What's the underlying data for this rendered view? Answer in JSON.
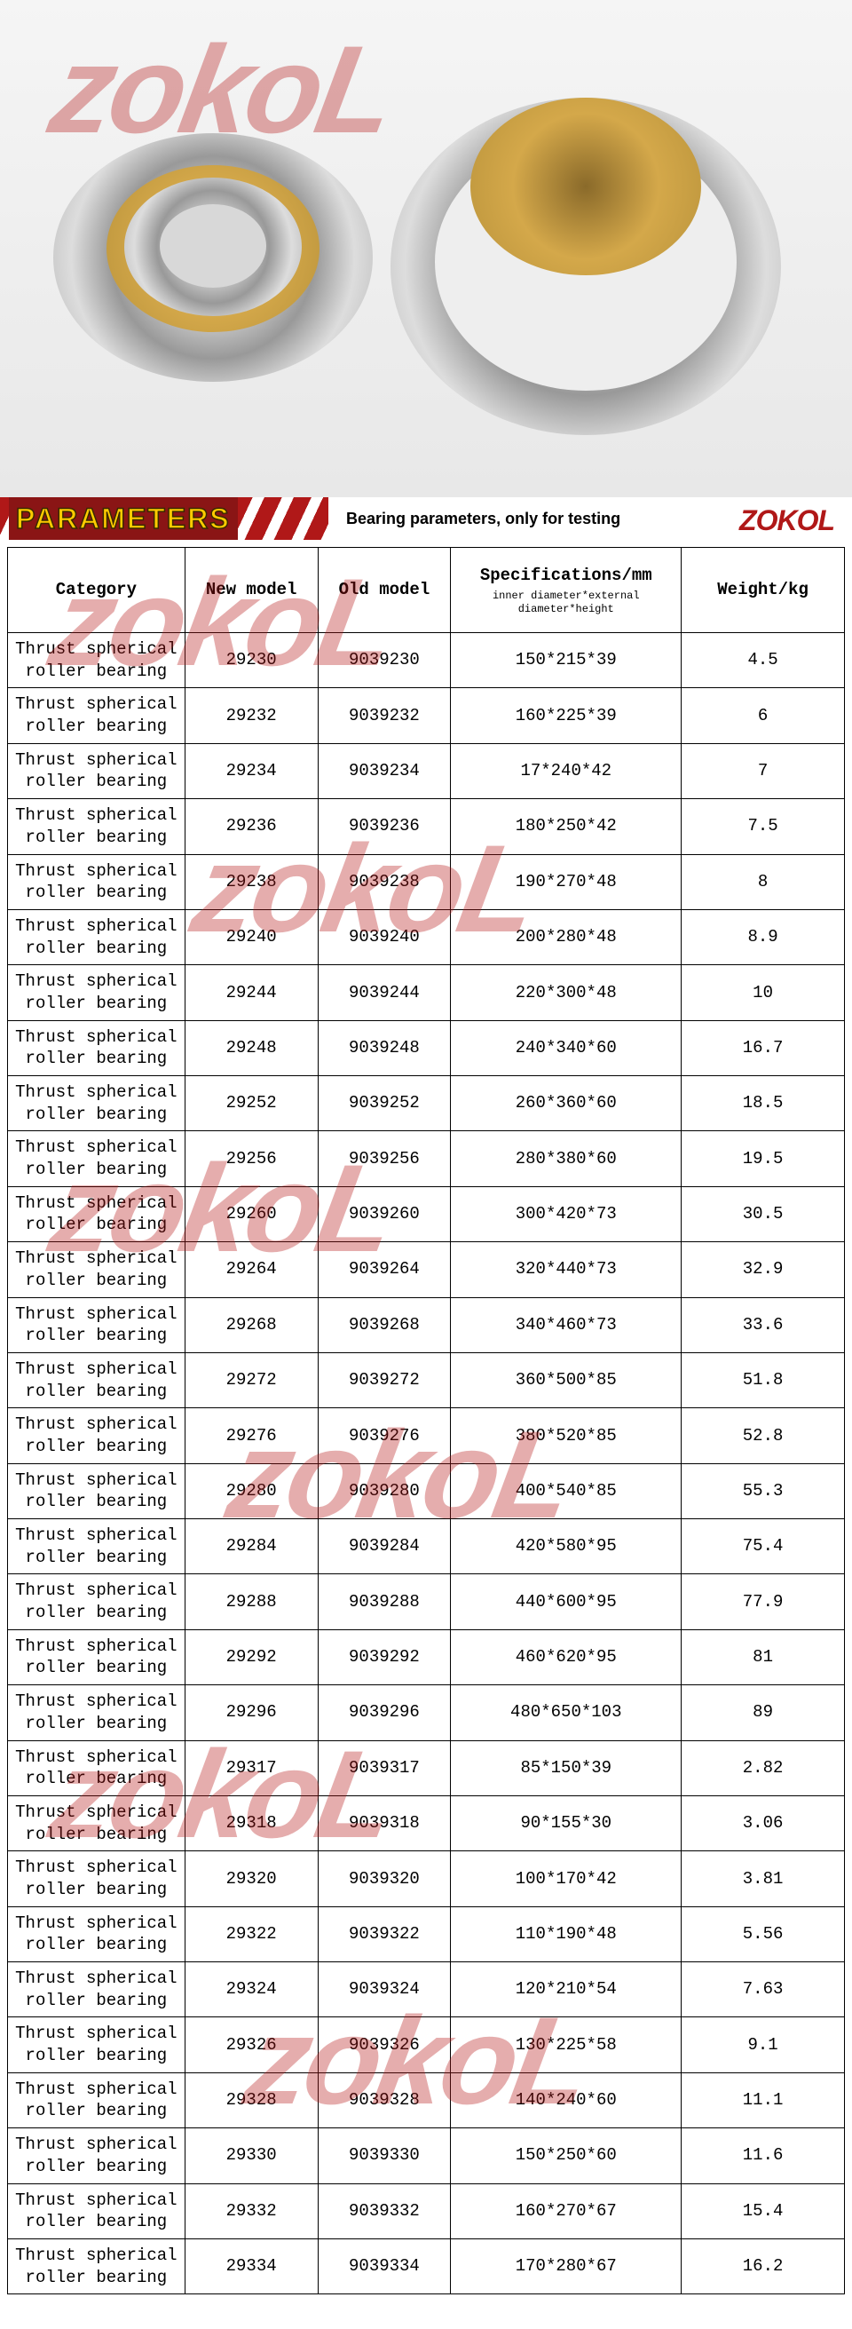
{
  "watermark_text": "zokoL",
  "product_image_alt": "Thrust spherical roller bearings",
  "parameters_header": {
    "label": "PARAMETERS",
    "subtitle": "Bearing parameters, only for testing",
    "brand": "ZOKOL"
  },
  "table": {
    "columns": [
      {
        "label": "Category",
        "sub": ""
      },
      {
        "label": "New model",
        "sub": ""
      },
      {
        "label": "Old model",
        "sub": ""
      },
      {
        "label": "Specifications/mm",
        "sub": "inner diameter*external diameter*height"
      },
      {
        "label": "Weight/kg",
        "sub": ""
      }
    ],
    "rows": [
      {
        "category": "Thrust spherical roller bearing",
        "new_model": "29230",
        "old_model": "9039230",
        "spec": "150*215*39",
        "weight": "4.5"
      },
      {
        "category": "Thrust spherical roller bearing",
        "new_model": "29232",
        "old_model": "9039232",
        "spec": "160*225*39",
        "weight": "6"
      },
      {
        "category": "Thrust spherical roller bearing",
        "new_model": "29234",
        "old_model": "9039234",
        "spec": "17*240*42",
        "weight": "7"
      },
      {
        "category": "Thrust spherical roller bearing",
        "new_model": "29236",
        "old_model": "9039236",
        "spec": "180*250*42",
        "weight": "7.5"
      },
      {
        "category": "Thrust spherical roller bearing",
        "new_model": "29238",
        "old_model": "9039238",
        "spec": "190*270*48",
        "weight": "8"
      },
      {
        "category": "Thrust spherical roller bearing",
        "new_model": "29240",
        "old_model": "9039240",
        "spec": "200*280*48",
        "weight": "8.9"
      },
      {
        "category": "Thrust spherical roller bearing",
        "new_model": "29244",
        "old_model": "9039244",
        "spec": "220*300*48",
        "weight": "10"
      },
      {
        "category": "Thrust spherical roller bearing",
        "new_model": "29248",
        "old_model": "9039248",
        "spec": "240*340*60",
        "weight": "16.7"
      },
      {
        "category": "Thrust spherical roller bearing",
        "new_model": "29252",
        "old_model": "9039252",
        "spec": "260*360*60",
        "weight": "18.5"
      },
      {
        "category": "Thrust spherical roller bearing",
        "new_model": "29256",
        "old_model": "9039256",
        "spec": "280*380*60",
        "weight": "19.5"
      },
      {
        "category": "Thrust spherical roller bearing",
        "new_model": "29260",
        "old_model": "9039260",
        "spec": "300*420*73",
        "weight": "30.5"
      },
      {
        "category": "Thrust spherical roller bearing",
        "new_model": "29264",
        "old_model": "9039264",
        "spec": "320*440*73",
        "weight": "32.9"
      },
      {
        "category": "Thrust spherical roller bearing",
        "new_model": "29268",
        "old_model": "9039268",
        "spec": "340*460*73",
        "weight": "33.6"
      },
      {
        "category": "Thrust spherical roller bearing",
        "new_model": "29272",
        "old_model": "9039272",
        "spec": "360*500*85",
        "weight": "51.8"
      },
      {
        "category": "Thrust spherical roller bearing",
        "new_model": "29276",
        "old_model": "9039276",
        "spec": "380*520*85",
        "weight": "52.8"
      },
      {
        "category": "Thrust spherical roller bearing",
        "new_model": "29280",
        "old_model": "9039280",
        "spec": "400*540*85",
        "weight": "55.3"
      },
      {
        "category": "Thrust spherical roller bearing",
        "new_model": "29284",
        "old_model": "9039284",
        "spec": "420*580*95",
        "weight": "75.4"
      },
      {
        "category": "Thrust spherical roller bearing",
        "new_model": "29288",
        "old_model": "9039288",
        "spec": "440*600*95",
        "weight": "77.9"
      },
      {
        "category": "Thrust spherical roller bearing",
        "new_model": "29292",
        "old_model": "9039292",
        "spec": "460*620*95",
        "weight": "81"
      },
      {
        "category": "Thrust spherical roller bearing",
        "new_model": "29296",
        "old_model": "9039296",
        "spec": "480*650*103",
        "weight": "89"
      },
      {
        "category": "Thrust spherical roller bearing",
        "new_model": "29317",
        "old_model": "9039317",
        "spec": "85*150*39",
        "weight": "2.82"
      },
      {
        "category": "Thrust spherical roller bearing",
        "new_model": "29318",
        "old_model": "9039318",
        "spec": "90*155*30",
        "weight": "3.06"
      },
      {
        "category": "Thrust spherical roller bearing",
        "new_model": "29320",
        "old_model": "9039320",
        "spec": "100*170*42",
        "weight": "3.81"
      },
      {
        "category": "Thrust spherical roller bearing",
        "new_model": "29322",
        "old_model": "9039322",
        "spec": "110*190*48",
        "weight": "5.56"
      },
      {
        "category": "Thrust spherical roller bearing",
        "new_model": "29324",
        "old_model": "9039324",
        "spec": "120*210*54",
        "weight": "7.63"
      },
      {
        "category": "Thrust spherical roller bearing",
        "new_model": "29326",
        "old_model": "9039326",
        "spec": "130*225*58",
        "weight": "9.1"
      },
      {
        "category": "Thrust spherical roller bearing",
        "new_model": "29328",
        "old_model": "9039328",
        "spec": "140*240*60",
        "weight": "11.1"
      },
      {
        "category": "Thrust spherical roller bearing",
        "new_model": "29330",
        "old_model": "9039330",
        "spec": "150*250*60",
        "weight": "11.6"
      },
      {
        "category": "Thrust spherical roller bearing",
        "new_model": "29332",
        "old_model": "9039332",
        "spec": "160*270*67",
        "weight": "15.4"
      },
      {
        "category": "Thrust spherical roller bearing",
        "new_model": "29334",
        "old_model": "9039334",
        "spec": "170*280*67",
        "weight": "16.2"
      }
    ]
  },
  "colors": {
    "watermark": "rgba(180,20,20,0.35)",
    "header_bg": "#8a1515",
    "header_text": "#ffcc00",
    "brand": "#b01818",
    "border": "#000000"
  }
}
